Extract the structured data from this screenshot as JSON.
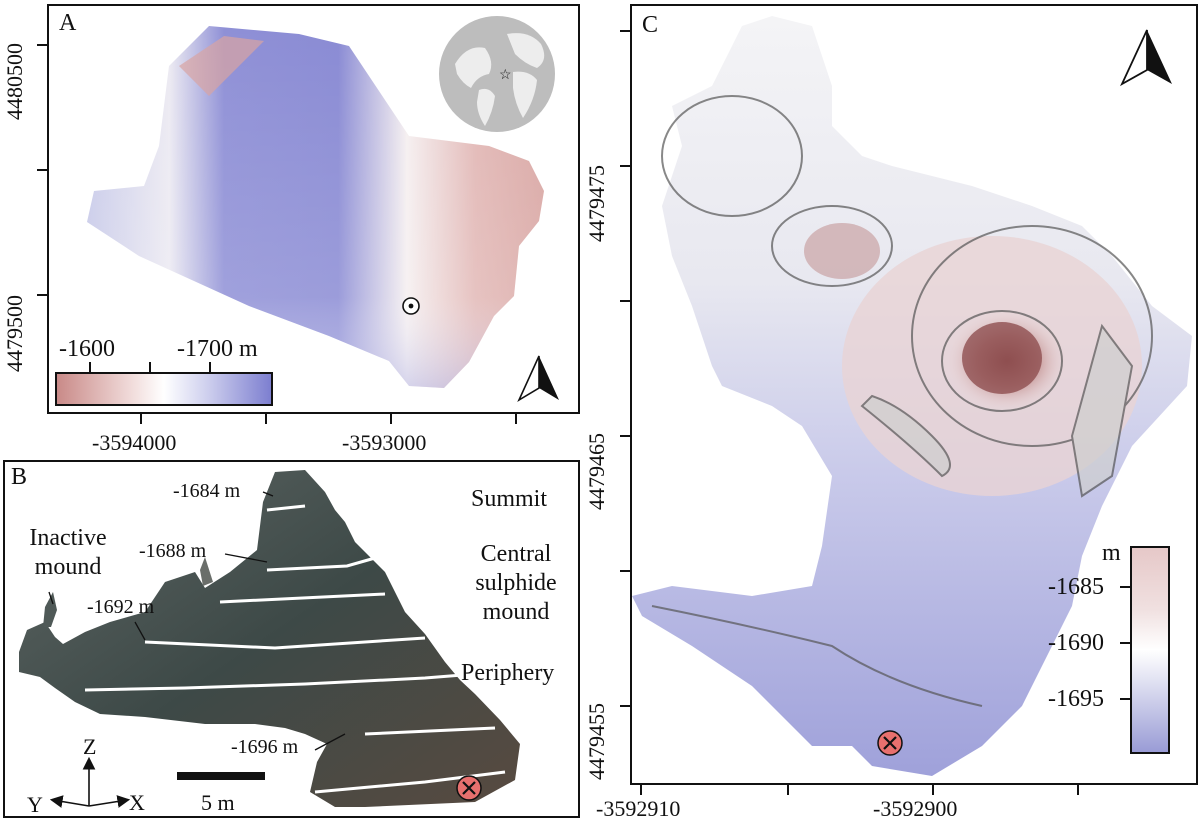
{
  "panel_a": {
    "letter": "A",
    "y_ticks": [
      "4480500",
      "4479500"
    ],
    "x_ticks": [
      "-3594000",
      "-3593000"
    ],
    "colorbar": {
      "label_left": "-1600",
      "label_right": "-1700 m",
      "colors": [
        "#c98a88",
        "#ffffff",
        "#7d7fd0"
      ]
    },
    "inset": "globe-inset"
  },
  "panel_b": {
    "letter": "B",
    "depth_labels": [
      "-1684 m",
      "-1688 m",
      "-1692 m",
      "-1696 m"
    ],
    "zones": [
      "Summit",
      "Central sulphide mound",
      "Periphery"
    ],
    "inactive_mound": "Inactive mound",
    "scale_bar": "5 m",
    "axes": {
      "z": "Z",
      "y": "Y",
      "x": "X"
    }
  },
  "panel_c": {
    "letter": "C",
    "y_ticks": [
      "4479475",
      "4479465",
      "4479455"
    ],
    "x_ticks": [
      "-3592910",
      "-3592900"
    ],
    "colorbar": {
      "unit": "m",
      "ticks": [
        "-1685",
        "-1690",
        "-1695"
      ],
      "colors": [
        "#e9c7c6",
        "#ffffff",
        "#9a9cd6"
      ]
    }
  }
}
